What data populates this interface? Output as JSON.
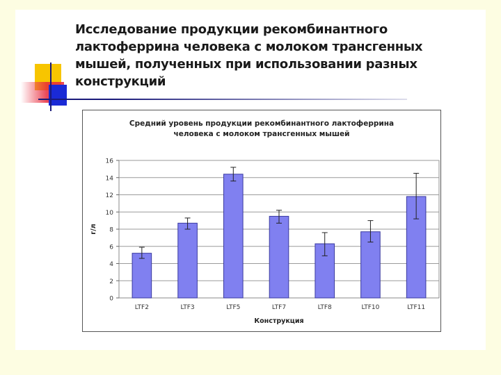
{
  "slide": {
    "title": "Исследование продукции рекомбинантного лактоферрина человека с молоком трансгенных мышей, полученных при использовании разных конструкций"
  },
  "colors": {
    "bar_fill": "#8080f0",
    "bar_stroke": "#3a3aa0",
    "background": "#fdfde2"
  },
  "chart_data": {
    "type": "bar",
    "title_lines": [
      "Средний уровень продукции рекомбинантного лактоферрина",
      "человека с молоком трансгенных мышей"
    ],
    "xlabel": "Конструкция",
    "ylabel": "г/л",
    "ylim": [
      0,
      16
    ],
    "yticks": [
      0,
      2,
      4,
      6,
      8,
      10,
      12,
      14,
      16
    ],
    "grid": "horizontal",
    "categories": [
      "LTF2",
      "LTF3",
      "LTF5",
      "LTF7",
      "LTF8",
      "LTF10",
      "LTF11"
    ],
    "values": [
      5.2,
      8.7,
      14.4,
      9.5,
      6.3,
      7.7,
      11.8
    ],
    "error_low": [
      4.6,
      8.0,
      13.6,
      8.7,
      4.9,
      6.5,
      9.2
    ],
    "error_high": [
      5.9,
      9.3,
      15.2,
      10.2,
      7.6,
      9.0,
      14.5
    ]
  }
}
